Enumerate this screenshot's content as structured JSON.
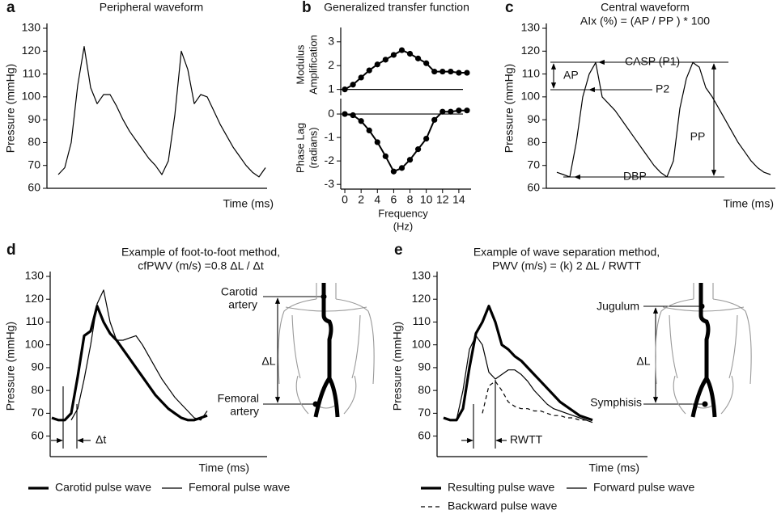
{
  "chart_data": [
    {
      "type": "line",
      "panel": "a",
      "title": "Peripheral waveform",
      "y_label": "Pressure (mmHg)",
      "x_label": "Time (ms)",
      "ylim": [
        60,
        130
      ],
      "yticks": [
        60,
        70,
        80,
        90,
        100,
        110,
        120,
        130
      ],
      "series": [
        {
          "color": "#000000",
          "style": "thin",
          "values": [
            66,
            69,
            80,
            105,
            122,
            104,
            97,
            101,
            101,
            96,
            90,
            85,
            81,
            77,
            73,
            70,
            66,
            72,
            92,
            120,
            112,
            97,
            101,
            100,
            94,
            88,
            83,
            78,
            74,
            70,
            67,
            65,
            69
          ]
        }
      ]
    },
    {
      "type": "line",
      "panel": "b",
      "title": "Generalized transfer function",
      "y_label": [
        "Modulus",
        "Amplification"
      ],
      "x": [
        0,
        1,
        2,
        3,
        4,
        5,
        6,
        7,
        8,
        9,
        10,
        11,
        12,
        13,
        14,
        15
      ],
      "xlim": [
        -0.5,
        15.5
      ],
      "ylim": [
        0.75,
        3.4
      ],
      "yticks": [
        1,
        2,
        3
      ],
      "reference_line": 1,
      "series": [
        {
          "color": "#000000",
          "style": "bold",
          "markers": true,
          "values": [
            1,
            1.2,
            1.5,
            1.8,
            2.05,
            2.25,
            2.45,
            2.65,
            2.5,
            2.3,
            2.1,
            1.75,
            1.75,
            1.75,
            1.7,
            1.7
          ]
        }
      ]
    },
    {
      "type": "line",
      "y_label": [
        "Phase Lag",
        "(radians)"
      ],
      "x_label": [
        "Frequency",
        "(Hz)"
      ],
      "x": [
        0,
        1,
        2,
        3,
        4,
        5,
        6,
        7,
        8,
        9,
        10,
        11,
        12,
        13,
        14,
        15
      ],
      "xlim": [
        -0.5,
        15.5
      ],
      "xticks": [
        0,
        2,
        4,
        6,
        8,
        10,
        12,
        14
      ],
      "ylim": [
        -3.2,
        0.45
      ],
      "yticks": [
        -3,
        -2,
        -1,
        0
      ],
      "reference_line": 0,
      "series": [
        {
          "color": "#000000",
          "style": "bold",
          "markers": true,
          "values": [
            0,
            -0.05,
            -0.3,
            -0.7,
            -1.2,
            -1.8,
            -2.45,
            -2.3,
            -1.95,
            -1.5,
            -1.05,
            -0.25,
            0.1,
            0.1,
            0.15,
            0.15
          ]
        }
      ]
    },
    {
      "type": "line",
      "panel": "c",
      "title": "Central waveform",
      "subtitle": "AIx (%) = (AP / PP ) * 100",
      "y_label": "Pressure (mmHg)",
      "x_label": "Time (ms)",
      "ylim": [
        60,
        130
      ],
      "yticks": [
        60,
        70,
        80,
        90,
        100,
        110,
        120,
        130
      ],
      "annotations": [
        "AP",
        "CASP (P1)",
        "P2",
        "PP",
        "DBP"
      ],
      "series": [
        {
          "color": "#000000",
          "style": "thin",
          "values": [
            67,
            66,
            65,
            80,
            100,
            110,
            115,
            100,
            97,
            94,
            90,
            86,
            82,
            78,
            74,
            70,
            67,
            65,
            72,
            95,
            108,
            115,
            113,
            104,
            100,
            95,
            90,
            85,
            80,
            76,
            72,
            69,
            67,
            66
          ]
        }
      ]
    },
    {
      "type": "line",
      "panel": "d",
      "title": "Example of foot-to-foot method,",
      "subtitle": "cfPWV (m/s) =0.8 ΔL / Δt",
      "y_label": "Pressure (mmHg)",
      "x_label": "Time (ms)",
      "ylim": [
        51,
        130
      ],
      "yticks": [
        60,
        70,
        80,
        90,
        100,
        110,
        120,
        130
      ],
      "annotations": [
        "Δt",
        [
          "Carotid",
          "artery"
        ],
        "ΔL",
        [
          "Femoral",
          "artery"
        ]
      ],
      "series": [
        {
          "name": "Carotid pulse wave",
          "color": "#000000",
          "style": "bold",
          "values": [
            68,
            67,
            67,
            70,
            86,
            104,
            106,
            117,
            110,
            105,
            102,
            98,
            94,
            90,
            86,
            82,
            78,
            75,
            72,
            70,
            68,
            67,
            67,
            68,
            69
          ]
        },
        {
          "name": "Femoral pulse wave",
          "color": "#000000",
          "style": "thin",
          "values": [
            null,
            null,
            null,
            67,
            72,
            85,
            100,
            118,
            124,
            110,
            102,
            102,
            103,
            104,
            100,
            95,
            90,
            85,
            81,
            77,
            74,
            71,
            68,
            67,
            71
          ]
        }
      ]
    },
    {
      "type": "line",
      "panel": "e",
      "title": "Example of wave separation method,",
      "subtitle": "PWV (m/s) = (k) 2 ΔL / RWTT",
      "y_label": "Pressure (mmHg)",
      "x_label": "Time (ms)",
      "ylim": [
        51,
        130
      ],
      "yticks": [
        60,
        70,
        80,
        90,
        100,
        110,
        120,
        130
      ],
      "annotations": [
        "RWTT",
        "Jugulum",
        "ΔL",
        "Symphisis"
      ],
      "series": [
        {
          "name": "Resulting pulse wave",
          "color": "#000000",
          "style": "bold",
          "values": [
            68,
            67,
            67,
            72,
            90,
            105,
            110,
            117,
            110,
            100,
            98,
            95,
            93,
            90,
            87,
            84,
            81,
            78,
            75,
            73,
            71,
            69,
            68,
            67
          ]
        },
        {
          "name": "Forward pulse wave",
          "color": "#000000",
          "style": "thin",
          "values": [
            68,
            67,
            67,
            80,
            98,
            104,
            100,
            88,
            85,
            87,
            89,
            89,
            87,
            84,
            80,
            77,
            74,
            72,
            71,
            70,
            69,
            68,
            67,
            66
          ]
        },
        {
          "name": "Backward pulse wave",
          "color": "#000000",
          "style": "dashed",
          "values": [
            null,
            null,
            null,
            null,
            null,
            null,
            70,
            82,
            84,
            80,
            75,
            73,
            72,
            72,
            71,
            71,
            70,
            69,
            69,
            68,
            68,
            67,
            67,
            67
          ]
        }
      ]
    }
  ]
}
